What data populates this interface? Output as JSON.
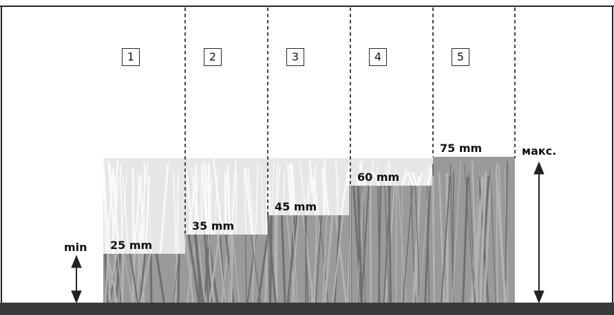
{
  "levels": [
    {
      "number": "1",
      "label": "25 mm",
      "height_mm": 25
    },
    {
      "number": "2",
      "label": "35 mm",
      "height_mm": 35
    },
    {
      "number": "3",
      "label": "45 mm",
      "height_mm": 45
    },
    {
      "number": "4",
      "label": "60 mm",
      "height_mm": 60
    },
    {
      "number": "5",
      "label": "75 mm",
      "height_mm": 75
    }
  ],
  "min_label": "min",
  "max_label": "макс.",
  "colors": {
    "ground": "#3a3a3a",
    "cut_grass": "#9a9a9a",
    "tall_grass": "#e6e6e6",
    "divider": "#444444"
  }
}
